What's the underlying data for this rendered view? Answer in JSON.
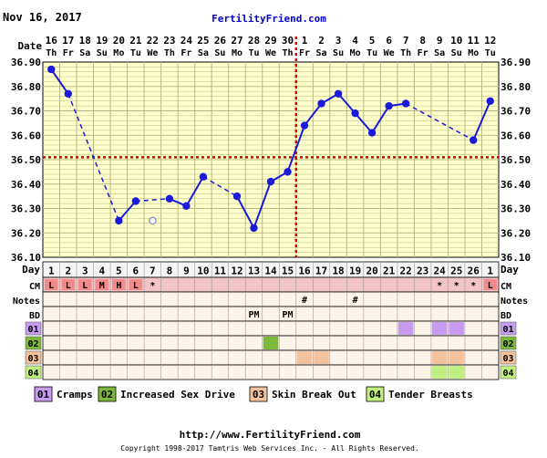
{
  "header": {
    "date": "Nov 16, 2017",
    "site": "FertilityFriend.com"
  },
  "footer": {
    "url": "http://www.FertilityFriend.com",
    "copyright": "Copyright 1998-2017 Tamtris Web Services Inc. - All Rights Reserved."
  },
  "labels": {
    "date": "Date",
    "day": "Day",
    "cm": "CM",
    "notes": "Notes",
    "bd": "BD"
  },
  "colors": {
    "plot_bg": "#ffffcc",
    "grid": "#b8b880",
    "line": "#1a1adb",
    "coverline": "#dd0000",
    "cm_bg": "#f2c6c6",
    "cm_box": "#f28a8a",
    "row_bg": "#fff4ea",
    "cramps": "#c79cf0",
    "increased_sex_drive": "#7cb83a",
    "skin_break_out": "#f5c39b",
    "tender_breasts": "#bff07f"
  },
  "chart_data": {
    "type": "line",
    "title": "",
    "xlabel": "",
    "ylabel": "",
    "ylim": [
      36.1,
      36.9
    ],
    "yticks": [
      "36.90",
      "36.80",
      "36.70",
      "36.60",
      "36.50",
      "36.40",
      "36.30",
      "36.20",
      "36.10"
    ],
    "dates": [
      "16",
      "17",
      "18",
      "19",
      "20",
      "21",
      "22",
      "23",
      "24",
      "25",
      "26",
      "27",
      "28",
      "29",
      "30",
      "1",
      "2",
      "3",
      "4",
      "5",
      "6",
      "7",
      "8",
      "9",
      "10",
      "11",
      "12"
    ],
    "weekdays": [
      "Th",
      "Fr",
      "Sa",
      "Su",
      "Mo",
      "Tu",
      "We",
      "Th",
      "Fr",
      "Sa",
      "Su",
      "Mo",
      "Tu",
      "We",
      "Th",
      "Fr",
      "Sa",
      "Su",
      "Mo",
      "Tu",
      "We",
      "Th",
      "Fr",
      "Sa",
      "Su",
      "Mo",
      "Tu"
    ],
    "cycle_days": [
      "1",
      "2",
      "3",
      "4",
      "5",
      "6",
      "7",
      "8",
      "9",
      "10",
      "11",
      "12",
      "13",
      "14",
      "15",
      "16",
      "17",
      "18",
      "19",
      "20",
      "21",
      "22",
      "23",
      "24",
      "25",
      "26",
      "1"
    ],
    "temperatures": [
      36.87,
      36.77,
      null,
      null,
      36.25,
      36.33,
      36.25,
      36.34,
      36.31,
      36.43,
      null,
      36.35,
      36.22,
      36.41,
      36.45,
      36.64,
      36.73,
      36.77,
      36.69,
      36.61,
      36.72,
      36.73,
      null,
      null,
      null,
      36.58,
      36.74
    ],
    "discarded_index": 6,
    "coverline": 36.51,
    "ovulation_index": 14,
    "cervical_mucus": [
      "L",
      "L",
      "L",
      "M",
      "H",
      "L",
      "*",
      "",
      "",
      "",
      "",
      "",
      "",
      "",
      "",
      "",
      "",
      "",
      "",
      "",
      "",
      "",
      "",
      "*",
      "*",
      "*",
      "L"
    ],
    "notes": [
      "",
      "",
      "",
      "",
      "",
      "",
      "",
      "",
      "",
      "",
      "",
      "",
      "",
      "",
      "",
      "#",
      "",
      "",
      "#",
      "",
      "",
      "",
      "",
      "",
      "",
      "",
      ""
    ],
    "bd": [
      "",
      "",
      "",
      "",
      "",
      "",
      "",
      "",
      "",
      "",
      "",
      "",
      "PM",
      "",
      "PM",
      "",
      "",
      "",
      "",
      "",
      "",
      "",
      "",
      "",
      "",
      "",
      ""
    ],
    "symptoms": [
      {
        "code": "01",
        "name": "Cramps",
        "color_key": "cramps",
        "days": [
          21,
          23,
          24
        ]
      },
      {
        "code": "02",
        "name": "Increased Sex Drive",
        "color_key": "increased_sex_drive",
        "days": [
          13
        ]
      },
      {
        "code": "03",
        "name": "Skin Break Out",
        "color_key": "skin_break_out",
        "days": [
          15,
          16,
          23,
          24
        ]
      },
      {
        "code": "04",
        "name": "Tender Breasts",
        "color_key": "tender_breasts",
        "days": [
          23,
          24
        ]
      }
    ]
  }
}
